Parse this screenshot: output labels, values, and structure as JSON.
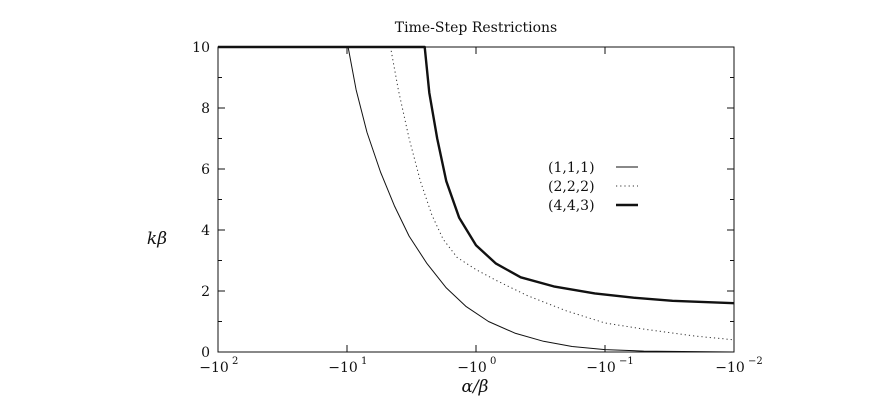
{
  "chart_data": {
    "type": "line",
    "title": "Time-Step Restrictions",
    "xlabel": "α/β",
    "ylabel": "kβ",
    "x_scale": "log",
    "x_direction": "negative",
    "xlim": [
      -100,
      -0.01
    ],
    "ylim": [
      0,
      10
    ],
    "xticks": [
      {
        "value": -100,
        "label": "−10"
      },
      {
        "value": -10,
        "label": "−10"
      },
      {
        "value": -1,
        "label": "−10"
      },
      {
        "value": -0.1,
        "label": "−10"
      },
      {
        "value": -0.01,
        "label": "−10"
      }
    ],
    "xtick_exponents": [
      "2",
      "1",
      "0",
      "−1",
      "−2"
    ],
    "yticks": [
      0,
      2,
      4,
      6,
      8,
      10
    ],
    "ytick_labels": [
      "0",
      "2",
      "4",
      "6",
      "8",
      "10"
    ],
    "grid": false,
    "legend_position": "center-right",
    "series": [
      {
        "name": "(1,1,1)",
        "style": "solid-thin",
        "points": [
          {
            "x": -100,
            "y": 10
          },
          {
            "x": -9.8,
            "y": 10
          },
          {
            "x": -8.5,
            "y": 8.6
          },
          {
            "x": -7.0,
            "y": 7.2
          },
          {
            "x": -5.5,
            "y": 5.9
          },
          {
            "x": -4.3,
            "y": 4.8
          },
          {
            "x": -3.3,
            "y": 3.8
          },
          {
            "x": -2.4,
            "y": 2.9
          },
          {
            "x": -1.7,
            "y": 2.1
          },
          {
            "x": -1.2,
            "y": 1.5
          },
          {
            "x": -0.8,
            "y": 1.0
          },
          {
            "x": -0.5,
            "y": 0.62
          },
          {
            "x": -0.3,
            "y": 0.35
          },
          {
            "x": -0.18,
            "y": 0.18
          },
          {
            "x": -0.1,
            "y": 0.08
          },
          {
            "x": -0.05,
            "y": 0.03
          },
          {
            "x": -0.01,
            "y": 0.0
          }
        ]
      },
      {
        "name": "(2,2,2)",
        "style": "dotted",
        "points": [
          {
            "x": -100,
            "y": 10
          },
          {
            "x": -4.6,
            "y": 10
          },
          {
            "x": -4.0,
            "y": 8.6
          },
          {
            "x": -3.3,
            "y": 7.0
          },
          {
            "x": -2.7,
            "y": 5.6
          },
          {
            "x": -2.2,
            "y": 4.5
          },
          {
            "x": -1.8,
            "y": 3.7
          },
          {
            "x": -1.4,
            "y": 3.1
          },
          {
            "x": -1.0,
            "y": 2.7
          },
          {
            "x": -0.7,
            "y": 2.35
          },
          {
            "x": -0.4,
            "y": 1.85
          },
          {
            "x": -0.2,
            "y": 1.35
          },
          {
            "x": -0.1,
            "y": 0.95
          },
          {
            "x": -0.05,
            "y": 0.75
          },
          {
            "x": -0.02,
            "y": 0.52
          },
          {
            "x": -0.01,
            "y": 0.4
          }
        ]
      },
      {
        "name": "(4,4,3)",
        "style": "solid-thick",
        "points": [
          {
            "x": -100,
            "y": 10
          },
          {
            "x": -2.5,
            "y": 10
          },
          {
            "x": -2.3,
            "y": 8.5
          },
          {
            "x": -2.0,
            "y": 7.0
          },
          {
            "x": -1.7,
            "y": 5.6
          },
          {
            "x": -1.35,
            "y": 4.4
          },
          {
            "x": -1.0,
            "y": 3.5
          },
          {
            "x": -0.7,
            "y": 2.9
          },
          {
            "x": -0.45,
            "y": 2.45
          },
          {
            "x": -0.25,
            "y": 2.15
          },
          {
            "x": -0.12,
            "y": 1.92
          },
          {
            "x": -0.06,
            "y": 1.78
          },
          {
            "x": -0.03,
            "y": 1.68
          },
          {
            "x": -0.01,
            "y": 1.6
          }
        ]
      }
    ]
  }
}
